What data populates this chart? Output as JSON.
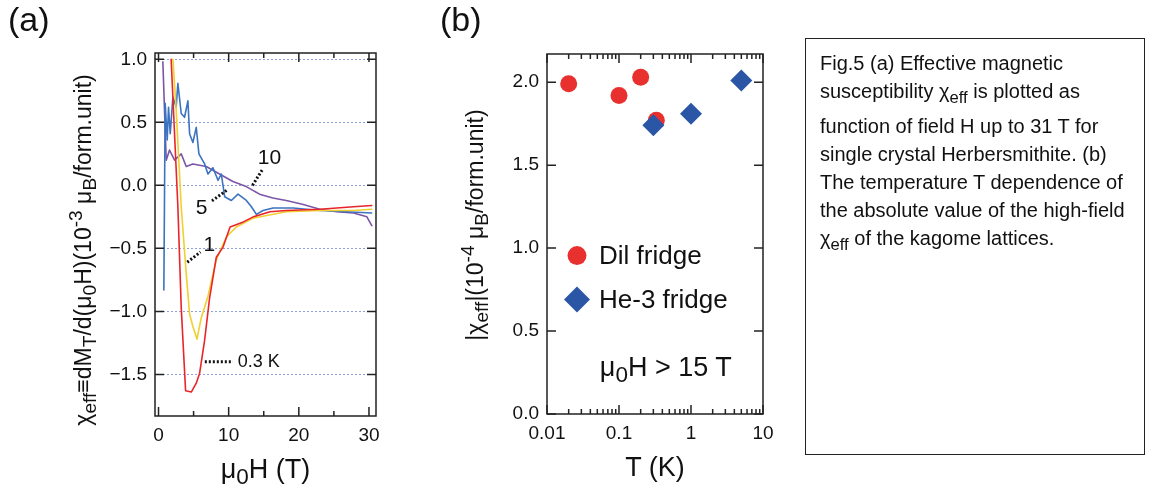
{
  "chart_data": [
    {
      "type": "line",
      "title": "(a)",
      "xlabel": "μ$_{0}$H (T)",
      "ylabel": "χ$_{eff}$≡dM$_{T}$/d(μ$_{0}$H)(10$^{-3}$ μ$_{B}$/form.unit)",
      "marker": "none",
      "line_style": "solid",
      "grid": "y",
      "legend": false,
      "xlim": [
        -0.5,
        31
      ],
      "xticks": [
        0,
        {
          "value": 5,
          "label": null
        },
        10,
        {
          "value": 15,
          "label": null
        },
        20,
        {
          "value": 25,
          "label": null
        },
        30
      ],
      "ylim": [
        -1.83,
        1.05
      ],
      "yticks": [
        {
          "value": 1,
          "label": "1.0"
        },
        {
          "value": 0.5,
          "label": "0.5"
        },
        {
          "value": 0,
          "label": "0.0"
        },
        {
          "value": -0.5,
          "label": "−0.5"
        },
        {
          "value": -1,
          "label": "−1.0"
        },
        {
          "value": -1.5,
          "label": "−1.5"
        }
      ],
      "series": [
        {
          "color": "#7b55a8",
          "x": [
            0.62,
            1.1,
            1.57,
            2.29,
            3.24,
            3.95,
            4.9,
            6.8,
            8.7,
            10.6,
            12.5,
            14.4,
            16.3,
            18.2,
            20.5,
            23,
            25.4,
            27.8,
            29.7,
            30.4
          ],
          "values": [
            0.98,
            0.2,
            0.28,
            0.2,
            0.25,
            0.15,
            0.17,
            0.15,
            0.09,
            0.03,
            -0.01,
            -0.07,
            -0.1,
            -0.12,
            -0.15,
            -0.19,
            -0.21,
            -0.22,
            -0.25,
            -0.32
          ]
        },
        {
          "color": "#3b73c0",
          "x": [
            0.76,
            0.95,
            1.24,
            1.43,
            1.67,
            2.05,
            2.52,
            2.76,
            3.24,
            3.71,
            4.19,
            4.43,
            4.9,
            5.38,
            5.76,
            6.57,
            7.05,
            7.76,
            8.48,
            8.95,
            9.43,
            10.38,
            11.33,
            12.52,
            13.24,
            13.95,
            14.9,
            16.33,
            19.2,
            23,
            26.8,
            30.38
          ],
          "values": [
            -0.83,
            0.65,
            0.36,
            0.62,
            0.41,
            0.7,
            0.62,
            0.81,
            0.57,
            0.54,
            0.67,
            0.41,
            0.34,
            0.46,
            0.25,
            0.17,
            0.09,
            0.14,
            0.04,
            0.09,
            -0.09,
            -0.12,
            -0.07,
            -0.12,
            -0.17,
            -0.23,
            -0.2,
            -0.18,
            -0.18,
            -0.2,
            -0.21,
            -0.22
          ]
        },
        {
          "color": "#f0d030",
          "x": [
            2.05,
            2.5,
            3.24,
            3.95,
            4.43,
            4.9,
            5.48,
            6.1,
            7.05,
            8.24,
            9.67,
            11.1,
            13.5,
            18.2,
            23,
            27.8,
            30.4
          ],
          "values": [
            1.0,
            0.62,
            -0.17,
            -0.7,
            -1.02,
            -1.12,
            -1.22,
            -1.05,
            -0.88,
            -0.59,
            -0.41,
            -0.33,
            -0.26,
            -0.21,
            -0.2,
            -0.2,
            -0.19
          ]
        },
        {
          "color": "#e8262a",
          "x": [
            1.8,
            2.76,
            3.24,
            3.86,
            4.67,
            5.38,
            5.86,
            6.57,
            7.29,
            8.24,
            9.2,
            10.2,
            12.1,
            13.5,
            15.9,
            18.2,
            23,
            27.8,
            30.4
          ],
          "values": [
            1.0,
            -0.17,
            -0.97,
            -1.63,
            -1.64,
            -1.57,
            -1.49,
            -1.23,
            -0.89,
            -0.57,
            -0.49,
            -0.33,
            -0.29,
            -0.25,
            -0.21,
            -0.2,
            -0.19,
            -0.17,
            -0.16
          ]
        }
      ],
      "annotations": [
        {
          "text": "0.3 K",
          "x": 6.6,
          "y": -1.4
        },
        {
          "text": "1",
          "x": 4.1,
          "y": -0.61
        },
        {
          "text": "5",
          "x": 9.7,
          "y": -0.04
        },
        {
          "text": "10",
          "x": 13.4,
          "y": 0.0
        }
      ]
    },
    {
      "type": "scatter",
      "title": "(b)",
      "xlabel": "T (K)",
      "ylabel": "|χ$_{eff}$|(10$^{-4}$ μ$_{B}$/form.unit)",
      "log": "x",
      "grid": false,
      "legend": "right",
      "xlim": [
        0.01,
        10
      ],
      "xticks": [
        0.01,
        {
          "value": 0.02,
          "label": null
        },
        {
          "value": 0.03,
          "label": null
        },
        {
          "value": 0.04,
          "label": null
        },
        {
          "value": 0.05,
          "label": null
        },
        {
          "value": 0.06,
          "label": null
        },
        {
          "value": 0.07,
          "label": null
        },
        {
          "value": 0.08,
          "label": null
        },
        {
          "value": 0.09,
          "label": null
        },
        0.1,
        {
          "value": 0.2,
          "label": null
        },
        {
          "value": 0.3,
          "label": null
        },
        {
          "value": 0.4,
          "label": null
        },
        {
          "value": 0.5,
          "label": null
        },
        {
          "value": 0.6,
          "label": null
        },
        {
          "value": 0.7,
          "label": null
        },
        {
          "value": 0.8,
          "label": null
        },
        {
          "value": 0.9,
          "label": null
        },
        1,
        {
          "value": 2,
          "label": null
        },
        {
          "value": 3,
          "label": null
        },
        {
          "value": 4,
          "label": null
        },
        {
          "value": 5,
          "label": null
        },
        {
          "value": 6,
          "label": null
        },
        {
          "value": 7,
          "label": null
        },
        {
          "value": 8,
          "label": null
        },
        {
          "value": 9,
          "label": null
        },
        10
      ],
      "ylim": [
        0,
        2.17
      ],
      "yticks": [
        {
          "value": 0,
          "label": "0.0"
        },
        {
          "value": 0.5,
          "label": "0.5"
        },
        {
          "value": 1,
          "label": "1.0"
        },
        {
          "value": 1.5,
          "label": "1.5"
        },
        {
          "value": 2,
          "label": "2.0"
        }
      ],
      "series": [
        {
          "name": "Dil fridge",
          "color": "#e8312f",
          "marker": "circle",
          "x": [
            0.02,
            0.1,
            0.2,
            0.33
          ],
          "values": [
            1.99,
            1.92,
            2.03,
            1.77
          ]
        },
        {
          "name": "He-3 fridge",
          "color": "#2a56a5",
          "marker": "diamond",
          "x": [
            0.3,
            1,
            5
          ],
          "values": [
            1.74,
            1.81,
            2.01
          ]
        }
      ],
      "annotations": [
        "μ$_{0}$H > 15 T"
      ]
    },
    {
      "type": "other",
      "annotations": [
        "Fig.5 (a) Effective magnetic susceptibility χ$_{eff}$ is plotted as function of field H up to 31 T for single crystal Herbersmithite. (b) The temperature T dependence of the absolute value of the high-field χ$_{eff}$ of the kagome lattices."
      ]
    }
  ]
}
